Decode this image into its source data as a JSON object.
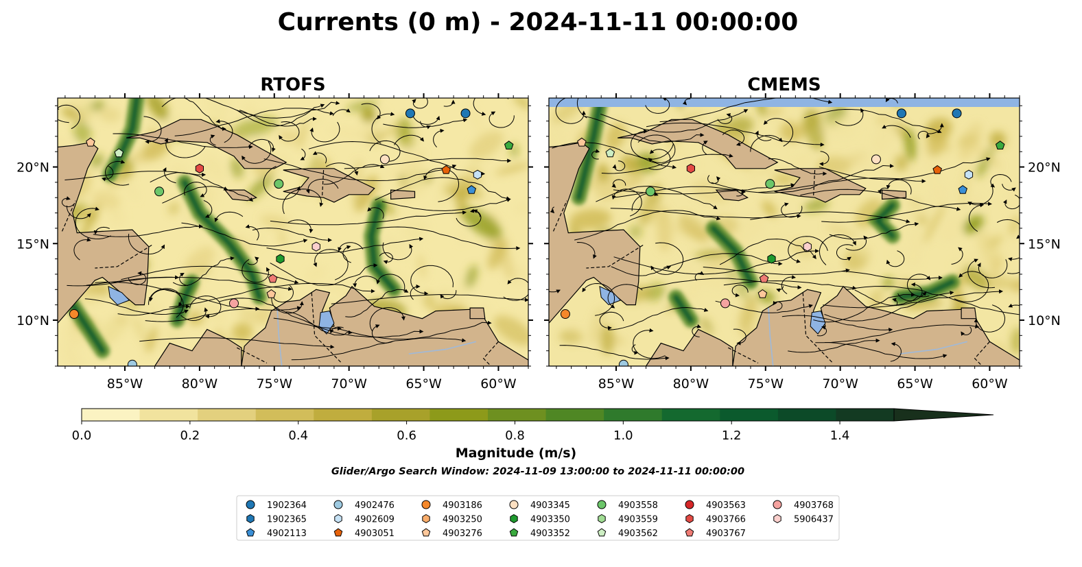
{
  "figure": {
    "title": "Currents (0 m) - 2024-11-11 00:00:00",
    "subtitle": "Glider/Argo Search Window: 2024-11-09 13:00:00 to 2024-11-11 00:00:00"
  },
  "chart_data": [
    {
      "type": "heatmap",
      "panel": "left",
      "title": "RTOFS",
      "xlim": [
        -89.5,
        -58.0
      ],
      "ylim": [
        7.0,
        24.5
      ],
      "xticks": [
        -85,
        -80,
        -75,
        -70,
        -65,
        -60
      ],
      "xtick_labels": [
        "85°W",
        "80°W",
        "75°W",
        "70°W",
        "65°W",
        "60°W"
      ],
      "yticks": [
        10,
        15,
        20
      ],
      "ytick_labels": [
        "10°N",
        "15°N",
        "20°N"
      ],
      "ytick_side": "left"
    },
    {
      "type": "heatmap",
      "panel": "right",
      "title": "CMEMS",
      "xlim": [
        -89.5,
        -58.0
      ],
      "ylim": [
        7.0,
        24.5
      ],
      "xticks": [
        -85,
        -80,
        -75,
        -70,
        -65,
        -60
      ],
      "xtick_labels": [
        "85°W",
        "80°W",
        "75°W",
        "70°W",
        "65°W",
        "60°W"
      ],
      "yticks": [
        10,
        15,
        20
      ],
      "ytick_labels": [
        "10°N",
        "15°N",
        "20°N"
      ],
      "ytick_side": "right"
    }
  ],
  "colorbar": {
    "label": "Magnitude (m/s)",
    "range": [
      0.0,
      1.5
    ],
    "extend": "max",
    "ticks": [
      0.0,
      0.2,
      0.4,
      0.6,
      0.8,
      1.0,
      1.2,
      1.4
    ],
    "tick_labels": [
      "0.0",
      "0.2",
      "0.4",
      "0.6",
      "0.8",
      "1.0",
      "1.2",
      "1.4"
    ],
    "colors": [
      "#fbf3c2",
      "#f1e39e",
      "#e3d07e",
      "#d2bd5a",
      "#c0ad3e",
      "#a8a12a",
      "#8d9a1a",
      "#6e9020",
      "#4f8724",
      "#2f7a2c",
      "#14692f",
      "#0b5a2d",
      "#0c4a28",
      "#133a22",
      "#18301c"
    ]
  },
  "legend": {
    "columns": [
      [
        {
          "id": "1902364",
          "marker": "circle",
          "color": "#1f77b4"
        },
        {
          "id": "1902365",
          "marker": "hexagon",
          "color": "#1f77b4"
        },
        {
          "id": "4902113",
          "marker": "pentagon",
          "color": "#3a8fd6"
        }
      ],
      [
        {
          "id": "4902476",
          "marker": "circle",
          "color": "#9ecae1"
        },
        {
          "id": "4902609",
          "marker": "hexagon",
          "color": "#c6e2f5"
        },
        {
          "id": "4903051",
          "marker": "pentagon",
          "color": "#e6620a"
        }
      ],
      [
        {
          "id": "4903186",
          "marker": "circle",
          "color": "#f5882a"
        },
        {
          "id": "4903250",
          "marker": "hexagon",
          "color": "#f9ad6b"
        },
        {
          "id": "4903276",
          "marker": "pentagon",
          "color": "#fdc79a"
        }
      ],
      [
        {
          "id": "4903345",
          "marker": "circle",
          "color": "#fde0c2"
        },
        {
          "id": "4903350",
          "marker": "hexagon",
          "color": "#1f9a2e"
        },
        {
          "id": "4903352",
          "marker": "pentagon",
          "color": "#3aaa3e"
        }
      ],
      [
        {
          "id": "4903558",
          "marker": "circle",
          "color": "#6cc66a"
        },
        {
          "id": "4903559",
          "marker": "hexagon",
          "color": "#a1dd94"
        },
        {
          "id": "4903562",
          "marker": "pentagon",
          "color": "#cdeec3"
        }
      ],
      [
        {
          "id": "4903563",
          "marker": "circle",
          "color": "#d62728"
        },
        {
          "id": "4903766",
          "marker": "hexagon",
          "color": "#e34a44"
        },
        {
          "id": "4903767",
          "marker": "pentagon",
          "color": "#ef7b74"
        }
      ],
      [
        {
          "id": "4903768",
          "marker": "circle",
          "color": "#f5a3a0"
        },
        {
          "id": "5906437",
          "marker": "hexagon",
          "color": "#fbd0cd"
        }
      ]
    ]
  },
  "floats": [
    {
      "id": "1902364",
      "lon": -65.9,
      "lat": 23.5
    },
    {
      "id": "1902364",
      "lon": -62.2,
      "lat": 23.5
    },
    {
      "id": "4903766",
      "lon": -80.0,
      "lat": 19.9
    },
    {
      "id": "4903276",
      "lon": -87.3,
      "lat": 21.6
    },
    {
      "id": "4903562",
      "lon": -85.4,
      "lat": 20.9
    },
    {
      "id": "4903558",
      "lon": -82.7,
      "lat": 18.4
    },
    {
      "id": "4903558",
      "lon": -74.7,
      "lat": 18.9
    },
    {
      "id": "4903345",
      "lon": -67.6,
      "lat": 20.5
    },
    {
      "id": "4903051",
      "lon": -63.5,
      "lat": 19.8
    },
    {
      "id": "4902609",
      "lon": -61.4,
      "lat": 19.5
    },
    {
      "id": "4902113",
      "lon": -61.8,
      "lat": 18.5
    },
    {
      "id": "4903352",
      "lon": -59.3,
      "lat": 21.4
    },
    {
      "id": "5906437",
      "lon": -72.2,
      "lat": 14.8
    },
    {
      "id": "4903350",
      "lon": -74.6,
      "lat": 14.0
    },
    {
      "id": "4903767",
      "lon": -75.1,
      "lat": 12.7
    },
    {
      "id": "4903276",
      "lon": -75.2,
      "lat": 11.7
    },
    {
      "id": "4903768",
      "lon": -77.7,
      "lat": 11.1
    },
    {
      "id": "4903186",
      "lon": -88.4,
      "lat": 10.4
    },
    {
      "id": "4902476",
      "lon": -84.5,
      "lat": 7.1
    }
  ]
}
